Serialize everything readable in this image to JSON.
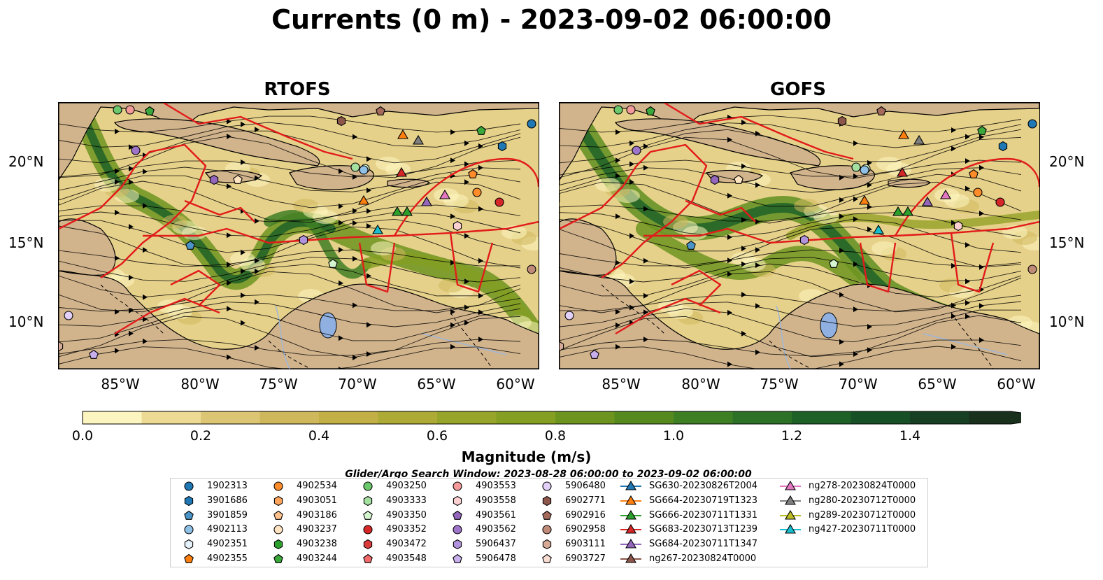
{
  "title": "Currents (0 m) - 2023-09-02 06:00:00",
  "panels": [
    {
      "title": "RTOFS"
    },
    {
      "title": "GOFS"
    }
  ],
  "axes": {
    "lat_ticks": [
      "20°N",
      "15°N",
      "10°N"
    ],
    "lon_ticks": [
      "85°W",
      "80°W",
      "75°W",
      "70°W",
      "65°W",
      "60°W"
    ]
  },
  "colorbar": {
    "label": "Magnitude (m/s)",
    "ticks": [
      "0.0",
      "0.2",
      "0.4",
      "0.6",
      "0.8",
      "1.0",
      "1.2",
      "1.4"
    ],
    "colors": [
      "#fdf5c0",
      "#eddb95",
      "#dcc673",
      "#cfb85c",
      "#c2b046",
      "#adab36",
      "#98a52b",
      "#849f22",
      "#6d941e",
      "#568a1f",
      "#3f7f24",
      "#2d7126",
      "#1e6127",
      "#175026",
      "#173f23",
      "#18301c"
    ],
    "extend": "max"
  },
  "search_window": "Glider/Argo Search Window: 2023-08-28 06:00:00 to 2023-09-02 06:00:00",
  "legend": [
    {
      "label": "1902313",
      "marker": "circle",
      "color": "#1f77b4"
    },
    {
      "label": "3901686",
      "marker": "hexagon",
      "color": "#1f77b4"
    },
    {
      "label": "3901859",
      "marker": "pentagon",
      "color": "#4b94c8"
    },
    {
      "label": "4902113",
      "marker": "circle",
      "color": "#8fc0e6"
    },
    {
      "label": "4902351",
      "marker": "hexagon",
      "color": "#e6f2fb"
    },
    {
      "label": "4902355",
      "marker": "pentagon",
      "color": "#ff7f0e"
    },
    {
      "label": "4902534",
      "marker": "circle",
      "color": "#ff8c2a"
    },
    {
      "label": "4903051",
      "marker": "hexagon",
      "color": "#ffa45a"
    },
    {
      "label": "4903186",
      "marker": "pentagon",
      "color": "#ffc28d"
    },
    {
      "label": "4903237",
      "marker": "circle",
      "color": "#ffe4c2"
    },
    {
      "label": "4903238",
      "marker": "hexagon",
      "color": "#2ca02c"
    },
    {
      "label": "4903244",
      "marker": "pentagon",
      "color": "#3aa83a"
    },
    {
      "label": "4903250",
      "marker": "circle",
      "color": "#6cc86c"
    },
    {
      "label": "4903333",
      "marker": "hexagon",
      "color": "#a4e0a0"
    },
    {
      "label": "4903350",
      "marker": "pentagon",
      "color": "#d5f5cf"
    },
    {
      "label": "4903352",
      "marker": "circle",
      "color": "#d62728"
    },
    {
      "label": "4903472",
      "marker": "hexagon",
      "color": "#dc3b3c"
    },
    {
      "label": "4903548",
      "marker": "pentagon",
      "color": "#f06a6a"
    },
    {
      "label": "4903553",
      "marker": "circle",
      "color": "#f49a9a"
    },
    {
      "label": "4903558",
      "marker": "hexagon",
      "color": "#fcd0d0"
    },
    {
      "label": "4903561",
      "marker": "pentagon",
      "color": "#9467bd"
    },
    {
      "label": "4903562",
      "marker": "circle",
      "color": "#9d74c8"
    },
    {
      "label": "5906437",
      "marker": "hexagon",
      "color": "#b093dc"
    },
    {
      "label": "5906478",
      "marker": "pentagon",
      "color": "#c8b0ec"
    },
    {
      "label": "5906480",
      "marker": "circle",
      "color": "#e2d0f8"
    },
    {
      "label": "6902771",
      "marker": "hexagon",
      "color": "#8c564b"
    },
    {
      "label": "6902916",
      "marker": "pentagon",
      "color": "#a46a5c"
    },
    {
      "label": "6902958",
      "marker": "circle",
      "color": "#bf8a78"
    },
    {
      "label": "6903111",
      "marker": "hexagon",
      "color": "#d7aa98"
    },
    {
      "label": "6903727",
      "marker": "pentagon",
      "color": "#f8dcd2"
    },
    {
      "label": "SG630-20230826T2004",
      "marker": "triangle",
      "color": "#1f77b4"
    },
    {
      "label": "SG664-20230719T1323",
      "marker": "triangle",
      "color": "#ff7f0e"
    },
    {
      "label": "SG666-20230711T1331",
      "marker": "triangle",
      "color": "#2ca02c"
    },
    {
      "label": "SG683-20230713T1239",
      "marker": "triangle",
      "color": "#d62728"
    },
    {
      "label": "SG684-20230711T1347",
      "marker": "triangle",
      "color": "#9467bd"
    },
    {
      "label": "ng267-20230824T0000",
      "marker": "triangle",
      "color": "#8c564b"
    },
    {
      "label": "ng278-20230824T0000",
      "marker": "triangle",
      "color": "#e377c2"
    },
    {
      "label": "ng280-20230712T0000",
      "marker": "triangle",
      "color": "#7f7f7f"
    },
    {
      "label": "ng289-20230712T0000",
      "marker": "triangle",
      "color": "#bcbd22"
    },
    {
      "label": "ng427-20230711T0000",
      "marker": "triangle",
      "color": "#17becf"
    }
  ]
}
